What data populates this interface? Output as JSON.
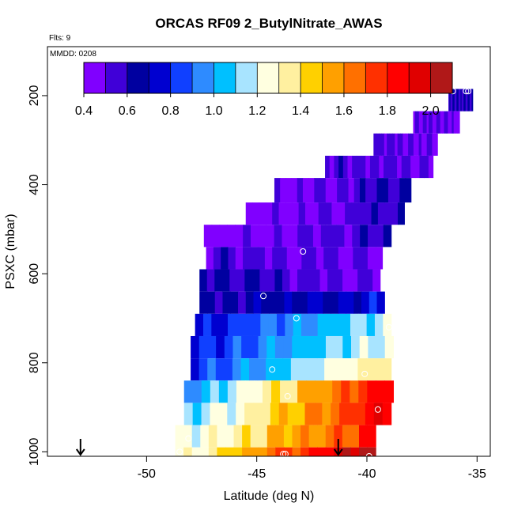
{
  "chart_data": {
    "type": "heatmap",
    "title": "ORCAS RF09 2_ButylNitrate_AWAS",
    "flights_label": "Flts: 9",
    "date_label": "MMDD: 0208",
    "xlabel": "Latitude (deg N)",
    "ylabel": "PSXC (mbar)",
    "xlim": [
      -54.5,
      -34.4
    ],
    "ylim": [
      1010,
      90
    ],
    "x_ticks": [
      -50,
      -45,
      -40,
      -35
    ],
    "x_tick_labels": [
      "-50",
      "-45",
      "-40",
      "-35"
    ],
    "y_ticks": [
      200,
      400,
      600,
      800,
      1000
    ],
    "y_tick_labels": [
      "200",
      "400",
      "600",
      "800",
      "1000"
    ],
    "colorbar": {
      "min": 0.4,
      "max": 2.1,
      "ticks": [
        0.4,
        0.6,
        0.8,
        1.0,
        1.2,
        1.4,
        1.6,
        1.8,
        2.0
      ],
      "tick_labels": [
        "0.4",
        "0.6",
        "0.8",
        "1.0",
        "1.2",
        "1.4",
        "1.6",
        "1.8",
        "2.0"
      ],
      "colors": [
        "#8000ff",
        "#4000d8",
        "#0000a0",
        "#0000d0",
        "#1040ff",
        "#2e8bff",
        "#00c0ff",
        "#a8e4ff",
        "#ffffe0",
        "#fff0a0",
        "#ffd000",
        "#ffa000",
        "#ff7000",
        "#ff3000",
        "#ff0000",
        "#e00000",
        "#b01818"
      ]
    },
    "bands": [
      {
        "p_top": 185,
        "p_bot": 235,
        "lat_start": -36.3,
        "lat_end": -35.2,
        "v_start": 0.6,
        "v_end": 0.6
      },
      {
        "p_top": 235,
        "p_bot": 285,
        "lat_start": -37.9,
        "lat_end": -35.8,
        "v_start": 0.55,
        "v_end": 0.45
      },
      {
        "p_top": 285,
        "p_bot": 335,
        "lat_start": -39.7,
        "lat_end": -36.8,
        "v_start": 0.55,
        "v_end": 0.48
      },
      {
        "p_top": 335,
        "p_bot": 385,
        "lat_start": -41.9,
        "lat_end": -37.0,
        "v_start": 0.55,
        "v_end": 0.52
      },
      {
        "p_top": 385,
        "p_bot": 440,
        "lat_start": -44.2,
        "lat_end": -38.0,
        "v_start": 0.45,
        "v_end": 0.6
      },
      {
        "p_top": 440,
        "p_bot": 490,
        "lat_start": -45.5,
        "lat_end": -38.3,
        "v_start": 0.42,
        "v_end": 0.6
      },
      {
        "p_top": 490,
        "p_bot": 540,
        "lat_start": -47.4,
        "lat_end": -38.9,
        "v_start": 0.4,
        "v_end": 0.6
      },
      {
        "p_top": 540,
        "p_bot": 590,
        "lat_start": -47.3,
        "lat_end": -39.3,
        "v_start": 0.55,
        "v_end": 0.5
      },
      {
        "p_top": 590,
        "p_bot": 640,
        "lat_start": -47.6,
        "lat_end": -39.4,
        "v_start": 0.6,
        "v_end": 0.5
      },
      {
        "p_top": 640,
        "p_bot": 690,
        "lat_start": -47.6,
        "lat_end": -39.2,
        "v_start": 0.62,
        "v_end": 0.75
      },
      {
        "p_top": 690,
        "p_bot": 740,
        "lat_start": -47.8,
        "lat_end": -38.9,
        "v_start": 0.75,
        "v_end": 1.2
      },
      {
        "p_top": 740,
        "p_bot": 790,
        "lat_start": -48.0,
        "lat_end": -38.8,
        "v_start": 0.78,
        "v_end": 1.25
      },
      {
        "p_top": 790,
        "p_bot": 840,
        "lat_start": -48.0,
        "lat_end": -38.9,
        "v_start": 0.8,
        "v_end": 1.4
      },
      {
        "p_top": 840,
        "p_bot": 890,
        "lat_start": -48.3,
        "lat_end": -38.8,
        "v_start": 0.95,
        "v_end": 1.9
      },
      {
        "p_top": 890,
        "p_bot": 940,
        "lat_start": -48.3,
        "lat_end": -38.9,
        "v_start": 1.05,
        "v_end": 1.9
      },
      {
        "p_top": 940,
        "p_bot": 990,
        "lat_start": -48.7,
        "lat_end": -39.6,
        "v_start": 1.15,
        "v_end": 1.8
      },
      {
        "p_top": 990,
        "p_bot": 1010,
        "lat_start": -48.7,
        "lat_end": -39.6,
        "v_start": 1.2,
        "v_end": 2.1
      }
    ],
    "points": [
      {
        "x": -36.1,
        "y": 190
      },
      {
        "x": -35.5,
        "y": 190
      },
      {
        "x": -35.4,
        "y": 190
      },
      {
        "x": -47.1,
        "y": 480
      },
      {
        "x": -42.9,
        "y": 550
      },
      {
        "x": -38.7,
        "y": 570
      },
      {
        "x": -44.7,
        "y": 650
      },
      {
        "x": -43.2,
        "y": 700
      },
      {
        "x": -39.0,
        "y": 720
      },
      {
        "x": -44.3,
        "y": 815
      },
      {
        "x": -40.1,
        "y": 825
      },
      {
        "x": -43.6,
        "y": 875
      },
      {
        "x": -39.5,
        "y": 905
      },
      {
        "x": -48.1,
        "y": 970
      },
      {
        "x": -48.5,
        "y": 1000
      },
      {
        "x": -43.8,
        "y": 1005
      },
      {
        "x": -43.7,
        "y": 1005
      },
      {
        "x": -39.9,
        "y": 1010
      }
    ],
    "arrows": [
      {
        "x": -53.0
      },
      {
        "x": -41.3
      }
    ]
  }
}
